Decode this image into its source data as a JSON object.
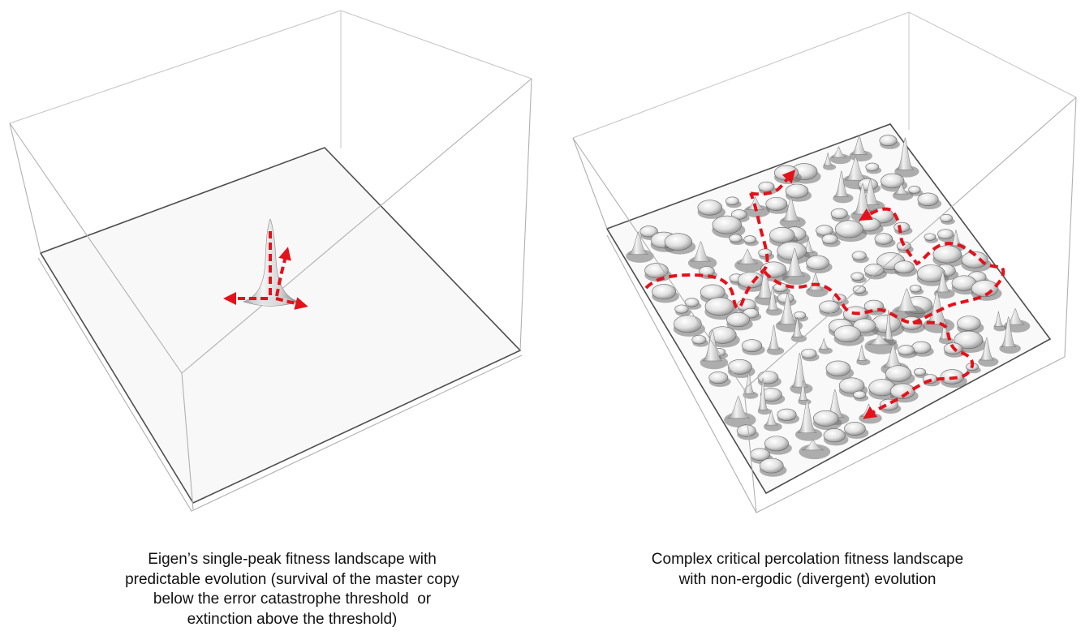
{
  "panels": [
    {
      "id": "single-peak",
      "caption_lines": [
        "Eigen’s single-peak fitness landscape with",
        "predictable evolution (survival of the master copy",
        "below the error catastrophe threshold  or",
        "extinction above the threshold)"
      ]
    },
    {
      "id": "percolation",
      "caption_lines": [
        "Complex critical percolation fitness landscape",
        "with non-ergodic (divergent) evolution"
      ]
    }
  ],
  "colors": {
    "path": "#e3121b",
    "box_edge": "#b5b5b5",
    "floor_edge": "#555555",
    "floor_fill": "#f7f7f7",
    "surface_light": "#f4f4f4",
    "surface_dark": "#8c8c8c",
    "caption_text": "#111111"
  }
}
